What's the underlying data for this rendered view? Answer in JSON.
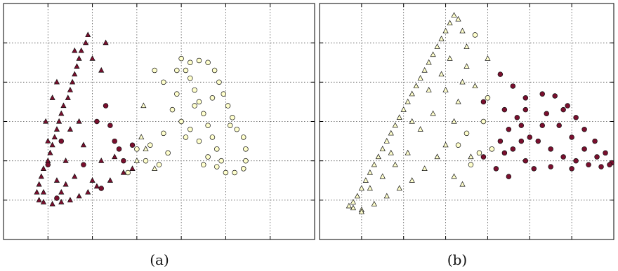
{
  "figure": {
    "subfigure_labels": [
      "(a)",
      "(b)"
    ]
  },
  "colors": {
    "class_dark": "#7a0f2e",
    "class_light": "#ffffcc",
    "edge": "#111111",
    "grid": "#555555"
  },
  "chart_data": [
    {
      "type": "scatter",
      "label": "(a)",
      "xlim": [
        0,
        7
      ],
      "ylim": [
        0,
        6
      ],
      "grid": true,
      "tick_labels_shown": false,
      "series": [
        {
          "marker": "triangle",
          "color": "#7a0f2e",
          "points": [
            [
              1.9,
              5.2
            ],
            [
              1.85,
              5.0
            ],
            [
              1.75,
              4.8
            ],
            [
              1.7,
              4.6
            ],
            [
              1.65,
              4.4
            ],
            [
              1.6,
              4.2
            ],
            [
              1.55,
              4.0
            ],
            [
              1.5,
              3.8
            ],
            [
              1.45,
              3.6
            ],
            [
              1.35,
              3.4
            ],
            [
              1.3,
              3.2
            ],
            [
              1.25,
              3.0
            ],
            [
              1.2,
              2.8
            ],
            [
              1.15,
              2.6
            ],
            [
              1.1,
              2.4
            ],
            [
              1.05,
              2.2
            ],
            [
              1.0,
              2.0
            ],
            [
              0.9,
              1.8
            ],
            [
              0.85,
              1.6
            ],
            [
              0.8,
              1.4
            ],
            [
              0.75,
              1.2
            ],
            [
              0.8,
              1.0
            ],
            [
              0.9,
              0.95
            ],
            [
              1.1,
              0.9
            ],
            [
              1.3,
              0.95
            ],
            [
              1.5,
              1.0
            ],
            [
              1.7,
              1.1
            ],
            [
              1.9,
              1.2
            ],
            [
              2.1,
              1.35
            ],
            [
              2.4,
              1.5
            ],
            [
              2.7,
              1.7
            ],
            [
              2.9,
              1.8
            ],
            [
              1.2,
              1.5
            ],
            [
              1.0,
              2.5
            ],
            [
              1.4,
              2.0
            ],
            [
              1.6,
              1.6
            ],
            [
              1.3,
              1.2
            ],
            [
              1.8,
              2.4
            ],
            [
              1.1,
              3.6
            ],
            [
              2.2,
              2.0
            ],
            [
              1.5,
              2.8
            ],
            [
              0.95,
              3.0
            ],
            [
              1.7,
              3.0
            ],
            [
              2.3,
              5.0
            ],
            [
              2.0,
              4.6
            ],
            [
              2.5,
              2.1
            ],
            [
              1.2,
              4.0
            ],
            [
              2.0,
              1.5
            ],
            [
              1.4,
              1.4
            ],
            [
              0.9,
              1.2
            ],
            [
              1.6,
              4.8
            ],
            [
              2.2,
              4.3
            ]
          ]
        },
        {
          "marker": "circle",
          "color": "#7a0f2e",
          "points": [
            [
              2.3,
              3.4
            ],
            [
              2.4,
              2.9
            ],
            [
              2.5,
              2.5
            ],
            [
              2.6,
              2.3
            ],
            [
              2.9,
              2.4
            ],
            [
              2.2,
              1.3
            ],
            [
              1.3,
              2.5
            ],
            [
              1.0,
              1.9
            ],
            [
              1.2,
              1.05
            ],
            [
              2.7,
              2.0
            ],
            [
              2.1,
              3.0
            ],
            [
              1.8,
              1.9
            ]
          ]
        },
        {
          "marker": "circle",
          "color": "#ffffcc",
          "points": [
            [
              4.0,
              4.6
            ],
            [
              4.2,
              4.5
            ],
            [
              4.4,
              4.55
            ],
            [
              4.6,
              4.5
            ],
            [
              4.75,
              4.3
            ],
            [
              4.85,
              4.0
            ],
            [
              4.95,
              3.7
            ],
            [
              5.05,
              3.4
            ],
            [
              5.15,
              3.1
            ],
            [
              5.25,
              2.8
            ],
            [
              5.4,
              2.6
            ],
            [
              5.45,
              2.3
            ],
            [
              5.45,
              2.0
            ],
            [
              5.4,
              1.8
            ],
            [
              5.2,
              1.7
            ],
            [
              5.0,
              1.7
            ],
            [
              4.9,
              2.0
            ],
            [
              4.8,
              2.3
            ],
            [
              4.7,
              2.6
            ],
            [
              4.6,
              2.9
            ],
            [
              4.5,
              3.2
            ],
            [
              4.4,
              3.5
            ],
            [
              4.3,
              3.8
            ],
            [
              4.2,
              4.1
            ],
            [
              4.1,
              4.3
            ],
            [
              3.9,
              4.3
            ],
            [
              3.6,
              4.0
            ],
            [
              3.8,
              3.3
            ],
            [
              4.0,
              3.0
            ],
            [
              4.2,
              2.8
            ],
            [
              4.4,
              2.5
            ],
            [
              4.6,
              2.1
            ],
            [
              4.8,
              1.85
            ],
            [
              3.4,
              4.3
            ],
            [
              3.9,
              3.7
            ],
            [
              4.3,
              3.4
            ],
            [
              3.7,
              2.2
            ],
            [
              4.1,
              2.6
            ],
            [
              3.5,
              1.9
            ],
            [
              4.5,
              1.9
            ],
            [
              3.3,
              2.4
            ],
            [
              3.0,
              2.3
            ],
            [
              3.2,
              2.0
            ],
            [
              2.8,
              1.7
            ],
            [
              5.1,
              2.9
            ],
            [
              4.7,
              3.6
            ],
            [
              3.6,
              2.7
            ]
          ]
        },
        {
          "marker": "triangle",
          "color": "#ffffcc",
          "points": [
            [
              3.15,
              3.4
            ],
            [
              3.1,
              2.6
            ],
            [
              3.2,
              2.3
            ],
            [
              3.4,
              1.8
            ],
            [
              3.0,
              2.0
            ]
          ]
        }
      ]
    },
    {
      "type": "scatter",
      "label": "(b)",
      "xlim": [
        0,
        7
      ],
      "ylim": [
        0,
        6
      ],
      "grid": true,
      "tick_labels_shown": false,
      "series": [
        {
          "marker": "triangle",
          "color": "#ffffcc",
          "points": [
            [
              3.2,
              5.7
            ],
            [
              3.1,
              5.5
            ],
            [
              3.0,
              5.3
            ],
            [
              2.9,
              5.1
            ],
            [
              2.8,
              4.9
            ],
            [
              2.7,
              4.7
            ],
            [
              2.6,
              4.5
            ],
            [
              2.5,
              4.3
            ],
            [
              2.4,
              4.1
            ],
            [
              2.3,
              3.9
            ],
            [
              2.2,
              3.7
            ],
            [
              2.1,
              3.5
            ],
            [
              2.0,
              3.3
            ],
            [
              1.9,
              3.1
            ],
            [
              1.8,
              2.9
            ],
            [
              1.7,
              2.7
            ],
            [
              1.6,
              2.5
            ],
            [
              1.5,
              2.3
            ],
            [
              1.4,
              2.1
            ],
            [
              1.3,
              1.9
            ],
            [
              1.2,
              1.7
            ],
            [
              1.1,
              1.5
            ],
            [
              1.0,
              1.3
            ],
            [
              0.9,
              1.1
            ],
            [
              0.8,
              0.95
            ],
            [
              0.7,
              0.85
            ],
            [
              0.8,
              0.8
            ],
            [
              1.0,
              0.75
            ],
            [
              1.3,
              0.9
            ],
            [
              1.6,
              1.1
            ],
            [
              1.9,
              1.3
            ],
            [
              2.2,
              1.5
            ],
            [
              2.5,
              1.8
            ],
            [
              2.8,
              2.1
            ],
            [
              3.0,
              2.4
            ],
            [
              3.2,
              3.0
            ],
            [
              3.3,
              3.5
            ],
            [
              3.4,
              4.0
            ],
            [
              3.5,
              4.4
            ],
            [
              3.5,
              4.9
            ],
            [
              3.4,
              5.3
            ],
            [
              3.3,
              5.6
            ],
            [
              3.0,
              3.8
            ],
            [
              2.7,
              3.2
            ],
            [
              2.4,
              2.8
            ],
            [
              2.1,
              2.2
            ],
            [
              1.8,
              1.9
            ],
            [
              1.5,
              1.6
            ],
            [
              2.9,
              4.2
            ],
            [
              3.1,
              4.6
            ],
            [
              2.6,
              3.8
            ],
            [
              2.2,
              3.0
            ],
            [
              1.7,
              2.2
            ],
            [
              1.2,
              1.3
            ],
            [
              4.0,
              4.6
            ],
            [
              3.7,
              3.9
            ],
            [
              3.6,
              2.1
            ],
            [
              3.2,
              1.6
            ],
            [
              3.4,
              1.4
            ],
            [
              1.0,
              0.7
            ]
          ]
        },
        {
          "marker": "circle",
          "color": "#ffffcc",
          "points": [
            [
              3.7,
              5.2
            ],
            [
              4.0,
              3.6
            ],
            [
              3.9,
              3.0
            ],
            [
              3.5,
              2.7
            ],
            [
              3.3,
              2.4
            ],
            [
              4.1,
              2.3
            ],
            [
              3.8,
              2.2
            ],
            [
              3.6,
              1.9
            ]
          ]
        },
        {
          "marker": "circle",
          "color": "#7a0f2e",
          "points": [
            [
              4.3,
              4.2
            ],
            [
              4.6,
              3.9
            ],
            [
              4.9,
              3.6
            ],
            [
              5.3,
              3.7
            ],
            [
              5.6,
              3.65
            ],
            [
              5.9,
              3.4
            ],
            [
              6.1,
              3.1
            ],
            [
              6.3,
              2.8
            ],
            [
              6.55,
              2.5
            ],
            [
              6.8,
              2.2
            ],
            [
              6.95,
              1.95
            ],
            [
              6.7,
              1.85
            ],
            [
              6.4,
              1.9
            ],
            [
              6.1,
              2.0
            ],
            [
              5.8,
              2.1
            ],
            [
              5.5,
              2.3
            ],
            [
              5.2,
              2.5
            ],
            [
              5.0,
              2.6
            ],
            [
              4.8,
              2.5
            ],
            [
              4.6,
              2.3
            ],
            [
              4.4,
              2.2
            ],
            [
              4.3,
              2.5
            ],
            [
              4.5,
              2.8
            ],
            [
              4.7,
              3.1
            ],
            [
              4.9,
              3.3
            ],
            [
              5.4,
              3.2
            ],
            [
              5.7,
              2.9
            ],
            [
              6.0,
              2.6
            ],
            [
              6.3,
              2.3
            ],
            [
              6.6,
              2.1
            ],
            [
              5.1,
              1.8
            ],
            [
              5.5,
              1.85
            ],
            [
              6.0,
              1.8
            ],
            [
              4.5,
              1.6
            ],
            [
              4.2,
              1.8
            ],
            [
              3.9,
              2.1
            ],
            [
              5.8,
              3.3
            ],
            [
              5.3,
              2.9
            ],
            [
              4.9,
              2.0
            ],
            [
              4.4,
              3.3
            ],
            [
              3.9,
              3.5
            ],
            [
              4.8,
              2.9
            ],
            [
              6.9,
              1.9
            ]
          ]
        }
      ]
    }
  ]
}
